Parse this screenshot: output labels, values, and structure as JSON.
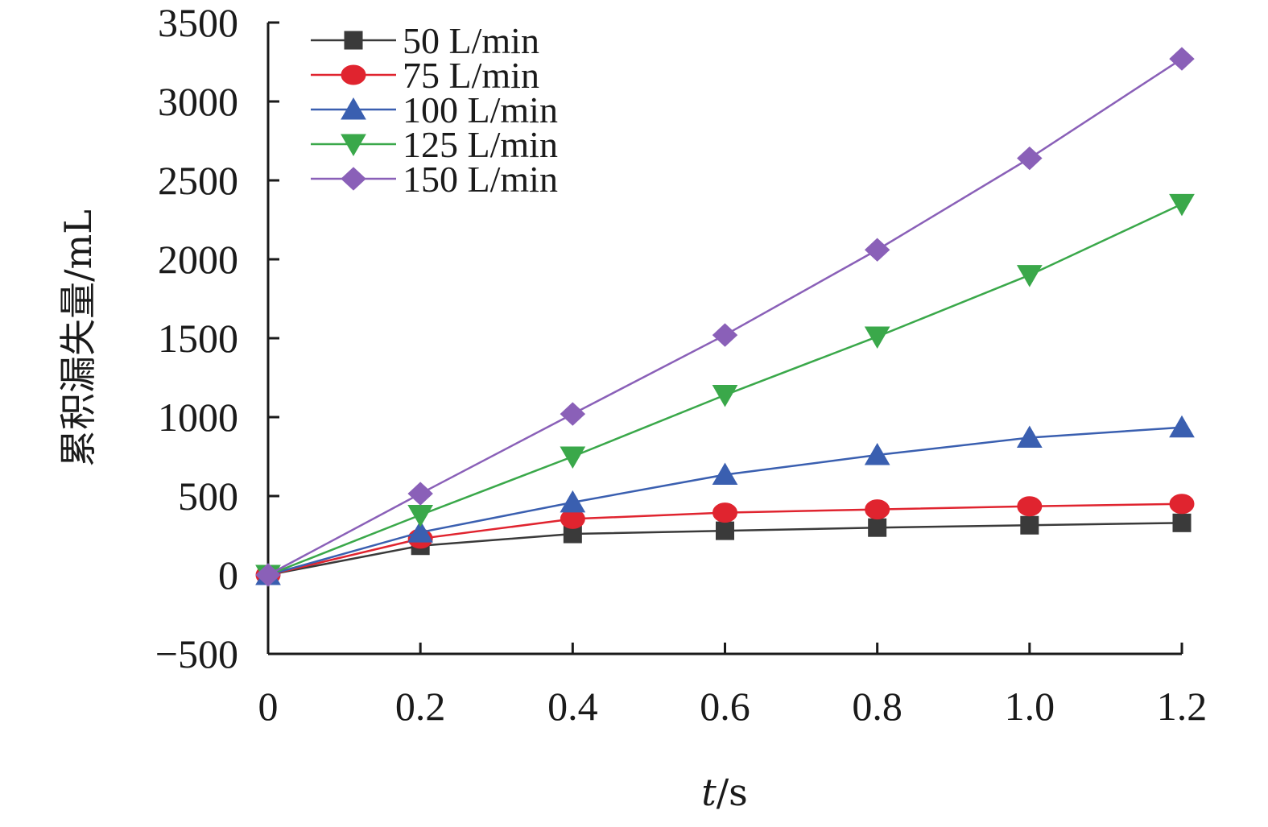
{
  "chart_data": {
    "type": "line",
    "title": "",
    "xlabel_italic": "t",
    "xlabel_rest": "/s",
    "ylabel": "累积漏失量/mL",
    "x": [
      0,
      0.2,
      0.4,
      0.6,
      0.8,
      1.0,
      1.2
    ],
    "x_tick_labels": [
      "0",
      "0.2",
      "0.4",
      "0.6",
      "0.8",
      "1.0",
      "1.2"
    ],
    "xlim": [
      0,
      1.2
    ],
    "y_ticks": [
      -500,
      0,
      500,
      1000,
      1500,
      2000,
      2500,
      3000,
      3500
    ],
    "y_tick_labels": [
      "−500",
      "0",
      "500",
      "1000",
      "1500",
      "2000",
      "2500",
      "3000",
      "3500"
    ],
    "ylim": [
      -500,
      3500
    ],
    "grid": false,
    "legend_position": "top-left",
    "series": [
      {
        "name": "50 L/min",
        "marker": "square",
        "color": "#3a3a3a",
        "values": [
          0,
          185,
          260,
          280,
          300,
          315,
          330
        ]
      },
      {
        "name": "75 L/min",
        "marker": "circle",
        "color": "#e0242f",
        "values": [
          0,
          230,
          355,
          395,
          415,
          435,
          450
        ]
      },
      {
        "name": "100 L/min",
        "marker": "triangle-up",
        "color": "#3a5fb0",
        "values": [
          0,
          270,
          460,
          635,
          760,
          870,
          935
        ]
      },
      {
        "name": "125 L/min",
        "marker": "triangle-down",
        "color": "#3aa84a",
        "values": [
          0,
          380,
          750,
          1140,
          1510,
          1900,
          2350
        ]
      },
      {
        "name": "150 L/min",
        "marker": "diamond",
        "color": "#8a60b8",
        "values": [
          0,
          515,
          1020,
          1520,
          2060,
          2640,
          3270
        ]
      }
    ]
  }
}
